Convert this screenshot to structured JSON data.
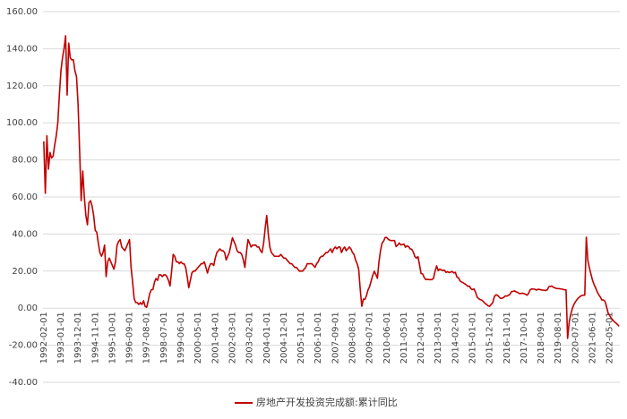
{
  "chart_data": {
    "type": "line",
    "categories": [
      "1992-02-01",
      null,
      null,
      null,
      null,
      null,
      null,
      null,
      null,
      null,
      null,
      "1993-01-01",
      null,
      null,
      null,
      null,
      null,
      null,
      null,
      null,
      null,
      null,
      "1993-12-01",
      null,
      null,
      null,
      null,
      null,
      null,
      null,
      null,
      null,
      null,
      "1994-11-01",
      null,
      null,
      null,
      null,
      null,
      null,
      null,
      null,
      null,
      null,
      "1995-10-01",
      null,
      null,
      null,
      null,
      null,
      null,
      null,
      null,
      null,
      null,
      "1996-09-01",
      null,
      null,
      null,
      null,
      null,
      null,
      null,
      null,
      null,
      null,
      "1997-08-01",
      null,
      null,
      null,
      null,
      null,
      null,
      null,
      null,
      null,
      null,
      "1998-07-01",
      null,
      null,
      null,
      null,
      null,
      null,
      null,
      null,
      null,
      null,
      "1999-06-01",
      null,
      null,
      null,
      null,
      null,
      null,
      null,
      null,
      null,
      null,
      "2000-05-01",
      null,
      null,
      null,
      null,
      null,
      null,
      null,
      null,
      null,
      null,
      "2001-04-01",
      null,
      null,
      null,
      null,
      null,
      null,
      null,
      null,
      null,
      null,
      "2002-03-01",
      null,
      null,
      null,
      null,
      null,
      null,
      null,
      null,
      null,
      null,
      "2003-02-01",
      null,
      null,
      null,
      null,
      null,
      null,
      null,
      null,
      null,
      null,
      "2004-01-01",
      null,
      null,
      null,
      null,
      null,
      null,
      null,
      null,
      null,
      null,
      "2004-12-01",
      null,
      null,
      null,
      null,
      null,
      null,
      null,
      null,
      null,
      null,
      "2005-11-01",
      null,
      null,
      null,
      null,
      null,
      null,
      null,
      null,
      null,
      null,
      "2006-10-01",
      null,
      null,
      null,
      null,
      null,
      null,
      null,
      null,
      null,
      null,
      "2007-09-01",
      null,
      null,
      null,
      null,
      null,
      null,
      null,
      null,
      null,
      null,
      "2008-08-01",
      null,
      null,
      null,
      null,
      null,
      null,
      null,
      null,
      null,
      null,
      "2009-07-01",
      null,
      null,
      null,
      null,
      null,
      null,
      null,
      null,
      null,
      null,
      "2010-06-01",
      null,
      null,
      null,
      null,
      null,
      null,
      null,
      null,
      null,
      null,
      "2011-05-01",
      null,
      null,
      null,
      null,
      null,
      null,
      null,
      null,
      null,
      null,
      "2012-04-01",
      null,
      null,
      null,
      null,
      null,
      null,
      null,
      null,
      null,
      null,
      "2013-03-01",
      null,
      null,
      null,
      null,
      null,
      null,
      null,
      null,
      null,
      null,
      "2014-02-01",
      null,
      null,
      null,
      null,
      null,
      null,
      null,
      null,
      null,
      null,
      "2015-01-01",
      null,
      null,
      null,
      null,
      null,
      null,
      null,
      null,
      null,
      null,
      "2015-12-01",
      null,
      null,
      null,
      null,
      null,
      null,
      null,
      null,
      null,
      null,
      "2016-11-01",
      null,
      null,
      null,
      null,
      null,
      null,
      null,
      null,
      null,
      null,
      "2017-10-01",
      null,
      null,
      null,
      null,
      null,
      null,
      null,
      null,
      null,
      null,
      "2018-09-01",
      null,
      null,
      null,
      null,
      null,
      null,
      null,
      null,
      null,
      null,
      "2019-08-01",
      null,
      null,
      null,
      null,
      null,
      null,
      null,
      null,
      null,
      null,
      "2020-07-01",
      null,
      null,
      null,
      null,
      null,
      null,
      null,
      null,
      null,
      null,
      "2021-06-01",
      null,
      null,
      null,
      null,
      null,
      null,
      null,
      null,
      null,
      null,
      "2022-05-01",
      null,
      null,
      null,
      null,
      null,
      null
    ],
    "series": [
      {
        "name": "房地产开发投资完成额:累计同比",
        "color": "#c00000",
        "values": [
          90,
          62,
          93,
          75,
          84,
          81,
          82,
          88,
          93,
          100,
          115,
          128,
          135,
          140,
          147,
          115,
          143,
          135,
          134,
          134,
          128,
          125,
          110,
          85,
          58,
          74,
          60,
          50,
          45,
          57,
          58,
          55,
          50,
          42,
          41,
          35,
          30,
          28,
          30,
          34,
          17,
          25,
          27,
          25,
          23,
          21,
          25,
          34,
          36,
          37,
          33,
          32,
          31,
          33,
          35,
          37,
          22,
          14,
          5,
          3,
          3,
          2,
          3,
          2,
          4,
          1,
          0.5,
          4,
          8,
          10,
          10,
          14,
          16,
          15,
          18,
          18,
          17,
          18,
          18,
          17,
          15,
          12,
          20,
          29,
          28,
          25,
          25,
          24,
          25,
          24,
          24,
          22,
          17,
          11,
          15,
          19,
          20,
          20,
          21,
          22,
          23,
          24,
          24,
          25,
          22,
          19,
          22,
          24,
          24,
          23,
          27,
          30,
          31,
          32,
          31,
          31,
          30,
          26,
          28,
          30,
          34,
          38,
          36,
          34,
          31,
          30,
          30,
          29,
          26,
          22,
          30,
          37,
          35,
          33,
          34,
          34,
          34,
          33,
          33,
          31,
          30,
          35,
          43,
          50,
          40,
          33,
          30,
          29,
          28,
          28,
          28,
          28,
          29,
          28,
          27,
          27,
          26,
          25,
          24,
          24,
          23,
          22,
          22,
          21,
          20,
          20,
          20,
          21,
          22,
          24,
          24,
          24,
          24,
          23,
          22,
          24,
          25,
          27,
          28,
          28,
          29,
          30,
          30,
          31,
          32,
          30,
          32,
          33,
          32,
          33,
          33,
          30,
          32,
          33,
          31,
          32,
          33,
          32,
          30,
          29,
          26,
          24,
          21,
          10,
          1,
          4.9,
          4.7,
          6.8,
          9.9,
          11.6,
          14.7,
          17.7,
          19.9,
          18.2,
          16.1,
          25,
          31.1,
          35.1,
          36.2,
          38.2,
          38.1,
          37.1,
          36.7,
          36.4,
          36.5,
          36.5,
          33.2,
          34,
          35.2,
          34.1,
          34.3,
          34.6,
          32.9,
          33.6,
          33.2,
          32,
          31.8,
          30.3,
          27.9,
          27,
          27.8,
          23.5,
          18.7,
          18.5,
          16.6,
          15.4,
          15.6,
          15.4,
          15.4,
          15.4,
          16.2,
          20,
          22.8,
          20.2,
          21.1,
          20.6,
          20.3,
          20.5,
          19.3,
          19.7,
          19.2,
          19.5,
          19.8,
          19,
          19.3,
          16.8,
          16.4,
          14.7,
          14.1,
          13.7,
          13.2,
          12.5,
          11.8,
          11.9,
          10.5,
          10,
          10.4,
          8.5,
          6,
          5.1,
          4.6,
          4.3,
          3.5,
          2.6,
          2,
          1.3,
          1,
          2,
          3,
          6.2,
          7.2,
          7,
          6.1,
          5.3,
          5.4,
          5.8,
          6.6,
          6.5,
          6.9,
          7.5,
          8.9,
          9.1,
          9.3,
          8.8,
          8.5,
          7.9,
          7.9,
          8.1,
          7.8,
          7.5,
          7,
          8,
          9.9,
          10.4,
          10.3,
          10.2,
          9.7,
          10.2,
          10.1,
          9.9,
          9.7,
          9.7,
          9.5,
          10,
          11.6,
          11.8,
          11.9,
          11.2,
          10.9,
          10.6,
          10.5,
          10.5,
          10.3,
          10.2,
          9.9,
          9.9,
          -16.3,
          -7.7,
          -3.3,
          -0.3,
          1.9,
          3.4,
          4.6,
          5.6,
          6.3,
          6.8,
          7,
          7,
          38.3,
          25.6,
          21.6,
          18.3,
          15,
          12.7,
          10.9,
          8.8,
          7.2,
          6,
          4.4,
          4.4,
          3.7,
          0.7,
          -2.7,
          -4,
          -5.4,
          -6.4,
          -7.4,
          -8,
          -8.8,
          -9.8
        ]
      }
    ],
    "ylim": [
      -40,
      160
    ],
    "yticks": [
      {
        "value": -40,
        "label": "-40.00"
      },
      {
        "value": -20,
        "label": "-20.00"
      },
      {
        "value": 0,
        "label": "0.00"
      },
      {
        "value": 20,
        "label": "20.00"
      },
      {
        "value": 40,
        "label": "40.00"
      },
      {
        "value": 60,
        "label": "60.00"
      },
      {
        "value": 80,
        "label": "80.00"
      },
      {
        "value": 100,
        "label": "100.00"
      },
      {
        "value": 120,
        "label": "120.00"
      },
      {
        "value": 140,
        "label": "140.00"
      },
      {
        "value": 160,
        "label": "160.00"
      }
    ],
    "grid": true,
    "legend": "bottom"
  }
}
